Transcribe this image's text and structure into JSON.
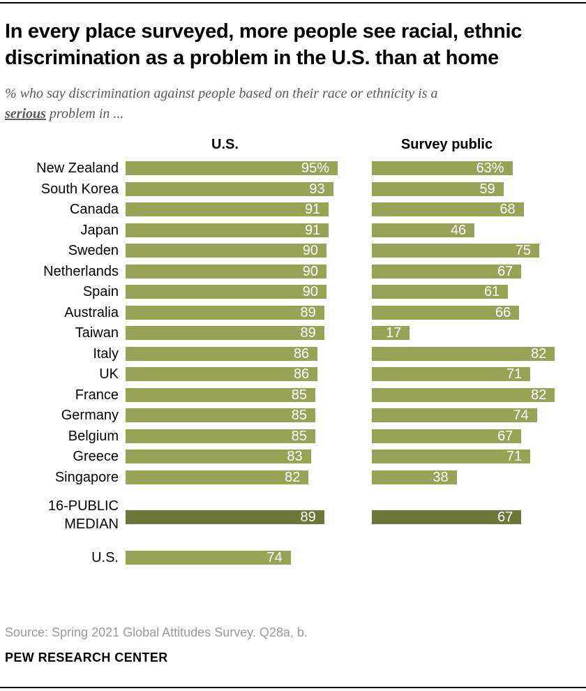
{
  "title": "In every place surveyed, more people see racial, ethnic discrimination as a problem in the U.S. than at home",
  "subtitle": {
    "line1": "% who say discrimination against people based on their race or ethnicity is a",
    "line2_emphasis": "serious",
    "line2_rest": " problem in ..."
  },
  "chart_data": {
    "type": "bar",
    "orientation": "horizontal",
    "unit": "%",
    "xlim": [
      0,
      100
    ],
    "grid": false,
    "columns": [
      {
        "header": "U.S."
      },
      {
        "header": "Survey public"
      }
    ],
    "colors": {
      "bar": "#99a355",
      "median_bar": "#6d7837",
      "value_text": "#ffffff"
    },
    "rows": [
      {
        "label": "New Zealand",
        "section": "countries",
        "us": 95,
        "survey_public": 63,
        "value_suffix": "%"
      },
      {
        "label": "South Korea",
        "section": "countries",
        "us": 93,
        "survey_public": 59
      },
      {
        "label": "Canada",
        "section": "countries",
        "us": 91,
        "survey_public": 68
      },
      {
        "label": "Japan",
        "section": "countries",
        "us": 91,
        "survey_public": 46
      },
      {
        "label": "Sweden",
        "section": "countries",
        "us": 90,
        "survey_public": 75
      },
      {
        "label": "Netherlands",
        "section": "countries",
        "us": 90,
        "survey_public": 67
      },
      {
        "label": "Spain",
        "section": "countries",
        "us": 90,
        "survey_public": 61
      },
      {
        "label": "Australia",
        "section": "countries",
        "us": 89,
        "survey_public": 66
      },
      {
        "label": "Taiwan",
        "section": "countries",
        "us": 89,
        "survey_public": 17
      },
      {
        "label": "Italy",
        "section": "countries",
        "us": 86,
        "survey_public": 82
      },
      {
        "label": "UK",
        "section": "countries",
        "us": 86,
        "survey_public": 71
      },
      {
        "label": "France",
        "section": "countries",
        "us": 85,
        "survey_public": 82
      },
      {
        "label": "Germany",
        "section": "countries",
        "us": 85,
        "survey_public": 74
      },
      {
        "label": "Belgium",
        "section": "countries",
        "us": 85,
        "survey_public": 67
      },
      {
        "label": "Greece",
        "section": "countries",
        "us": 83,
        "survey_public": 71
      },
      {
        "label": "Singapore",
        "section": "countries",
        "us": 82,
        "survey_public": 38
      },
      {
        "label": "16-PUBLIC MEDIAN",
        "section": "median",
        "us": 89,
        "survey_public": 67,
        "emphasis": true
      },
      {
        "label": "U.S.",
        "section": "us",
        "us": 74,
        "survey_public": null
      }
    ]
  },
  "source": "Source: Spring 2021 Global Attitudes Survey. Q28a, b.",
  "brand": "PEW RESEARCH CENTER"
}
